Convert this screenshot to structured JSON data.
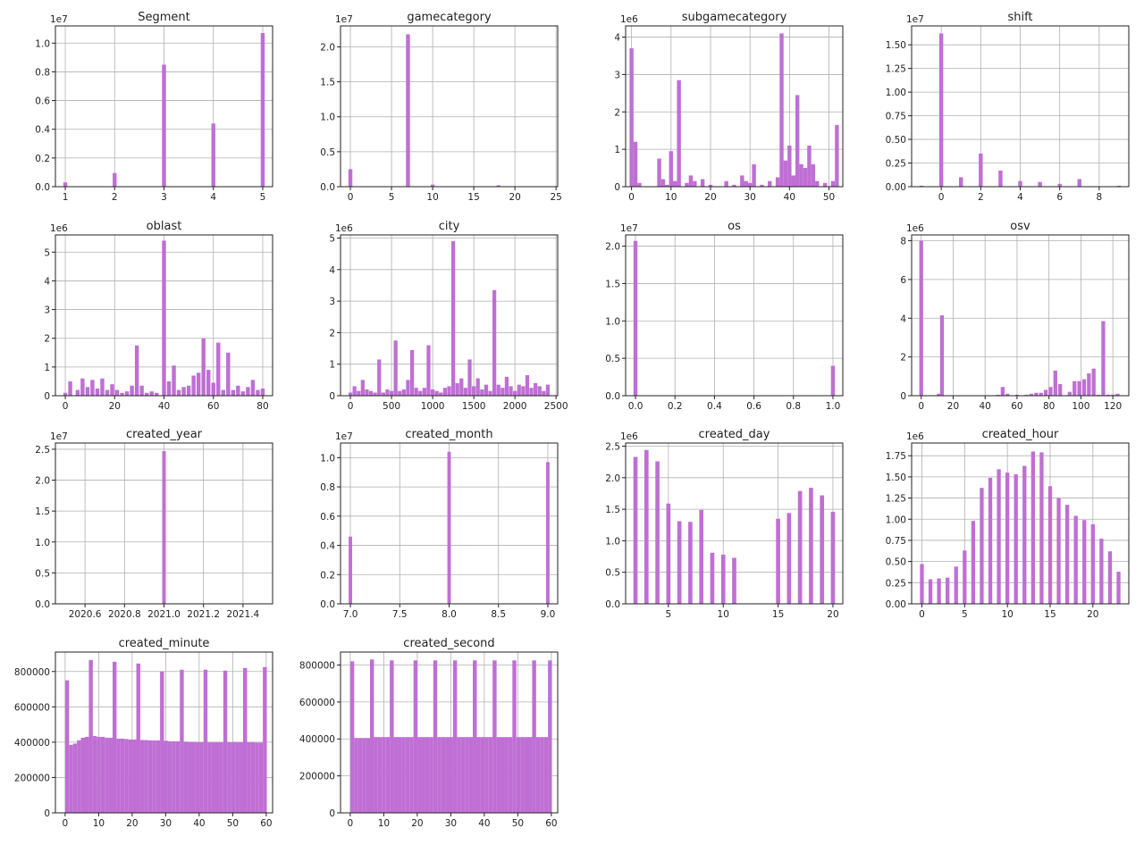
{
  "colors": {
    "bar": "#bf6fd4",
    "grid": "#b0b0b0",
    "axis": "#222222",
    "background": "#ffffff"
  },
  "chart_data": [
    {
      "type": "bar",
      "title": "Segment",
      "multiplier": "1e7",
      "grid": true,
      "xlim": [
        0.8,
        5.2
      ],
      "ylim": [
        0,
        1.12
      ],
      "xticks": [
        1,
        2,
        3,
        4,
        5
      ],
      "xtick_labels": [
        "1",
        "2",
        "3",
        "4",
        "5"
      ],
      "yticks": [
        0,
        0.2,
        0.4,
        0.6,
        0.8,
        1.0
      ],
      "ytick_labels": [
        "0.0",
        "0.2",
        "0.4",
        "0.6",
        "0.8",
        "1.0"
      ],
      "bar_width": 0.08,
      "x": [
        1,
        2,
        3,
        4,
        5
      ],
      "values": [
        0.03,
        0.095,
        0.85,
        0.44,
        1.07
      ]
    },
    {
      "type": "bar",
      "title": "gamecategory",
      "multiplier": "1e7",
      "grid": true,
      "xlim": [
        -1.2,
        25.2
      ],
      "ylim": [
        0,
        2.3
      ],
      "xticks": [
        0,
        5,
        10,
        15,
        20,
        25
      ],
      "xtick_labels": [
        "0",
        "5",
        "10",
        "15",
        "20",
        "25"
      ],
      "yticks": [
        0,
        0.5,
        1.0,
        1.5,
        2.0
      ],
      "ytick_labels": [
        "0.0",
        "0.5",
        "1.0",
        "1.5",
        "2.0"
      ],
      "bar_width": 0.48,
      "x": [
        0,
        7,
        10,
        18
      ],
      "values": [
        0.25,
        2.18,
        0.03,
        0.02
      ]
    },
    {
      "type": "bar",
      "title": "subgamecategory",
      "multiplier": "1e6",
      "grid": true,
      "xlim": [
        -1.5,
        53.5
      ],
      "ylim": [
        0,
        4.3
      ],
      "xticks": [
        0,
        10,
        20,
        30,
        40,
        50
      ],
      "xtick_labels": [
        "0",
        "10",
        "20",
        "30",
        "40",
        "50"
      ],
      "yticks": [
        0,
        1,
        2,
        3,
        4
      ],
      "ytick_labels": [
        "0",
        "1",
        "2",
        "3",
        "4"
      ],
      "bar_width": 1.0,
      "x": [
        0,
        1,
        2,
        7,
        8,
        9,
        10,
        11,
        12,
        14,
        15,
        16,
        18,
        20,
        24,
        26,
        28,
        29,
        30,
        31,
        33,
        35,
        37,
        38,
        39,
        40,
        41,
        42,
        43,
        44,
        45,
        46,
        47,
        49,
        51,
        52
      ],
      "values": [
        3.7,
        1.2,
        0.1,
        0.75,
        0.2,
        0.05,
        0.95,
        0.15,
        2.85,
        0.1,
        0.3,
        0.15,
        0.2,
        0.05,
        0.15,
        0.05,
        0.3,
        0.15,
        0.1,
        0.6,
        0.05,
        0.15,
        0.25,
        4.1,
        0.7,
        1.1,
        0.3,
        2.45,
        0.6,
        0.5,
        1.1,
        0.6,
        0.15,
        0.1,
        0.15,
        1.65
      ]
    },
    {
      "type": "bar",
      "title": "shift",
      "multiplier": "1e7",
      "grid": true,
      "xlim": [
        -1.5,
        9.5
      ],
      "ylim": [
        0,
        1.7
      ],
      "xticks": [
        0,
        2,
        4,
        6,
        8
      ],
      "xtick_labels": [
        "0",
        "2",
        "4",
        "6",
        "8"
      ],
      "yticks": [
        0,
        0.25,
        0.5,
        0.75,
        1.0,
        1.25,
        1.5
      ],
      "ytick_labels": [
        "0.00",
        "0.25",
        "0.50",
        "0.75",
        "1.00",
        "1.25",
        "1.50"
      ],
      "bar_width": 0.2,
      "x": [
        -1,
        0,
        1,
        2,
        3,
        4,
        5,
        6,
        7,
        9
      ],
      "values": [
        0.01,
        1.62,
        0.1,
        0.35,
        0.17,
        0.06,
        0.05,
        0.03,
        0.08,
        0.01
      ]
    },
    {
      "type": "bar",
      "title": "oblast",
      "multiplier": "1e6",
      "grid": true,
      "xlim": [
        -4,
        84
      ],
      "ylim": [
        0,
        5.6
      ],
      "xticks": [
        0,
        20,
        40,
        60,
        80
      ],
      "xtick_labels": [
        "0",
        "20",
        "40",
        "60",
        "80"
      ],
      "yticks": [
        0,
        1,
        2,
        3,
        4,
        5
      ],
      "ytick_labels": [
        "0",
        "1",
        "2",
        "3",
        "4",
        "5"
      ],
      "bar_width": 1.6,
      "x": [
        0,
        2,
        5,
        7,
        9,
        11,
        13,
        15,
        17,
        19,
        21,
        23,
        25,
        27,
        29,
        31,
        33,
        35,
        37,
        40,
        42,
        44,
        46,
        48,
        50,
        52,
        54,
        56,
        58,
        60,
        62,
        64,
        66,
        68,
        70,
        72,
        74,
        76,
        78,
        80
      ],
      "values": [
        0.1,
        0.5,
        0.2,
        0.6,
        0.3,
        0.55,
        0.25,
        0.6,
        0.2,
        0.4,
        0.2,
        0.1,
        0.15,
        0.35,
        1.75,
        0.35,
        0.1,
        0.15,
        0.1,
        5.4,
        0.5,
        1.05,
        0.2,
        0.3,
        0.35,
        0.7,
        0.8,
        2.0,
        0.9,
        0.45,
        1.85,
        0.2,
        1.5,
        0.2,
        0.35,
        0.15,
        0.3,
        0.55,
        0.2,
        0.25
      ]
    },
    {
      "type": "bar",
      "title": "city",
      "multiplier": "1e6",
      "grid": true,
      "xlim": [
        -120,
        2520
      ],
      "ylim": [
        0,
        5.1
      ],
      "xticks": [
        0,
        500,
        1000,
        1500,
        2000,
        2500
      ],
      "xtick_labels": [
        "0",
        "500",
        "1000",
        "1500",
        "2000",
        "2500"
      ],
      "yticks": [
        0,
        1,
        2,
        3,
        4,
        5
      ],
      "ytick_labels": [
        "0",
        "1",
        "2",
        "3",
        "4",
        "5"
      ],
      "bar_width": 46,
      "x": [
        0,
        50,
        100,
        150,
        200,
        250,
        300,
        350,
        400,
        450,
        500,
        550,
        600,
        650,
        700,
        750,
        800,
        850,
        900,
        950,
        1000,
        1050,
        1100,
        1150,
        1200,
        1250,
        1300,
        1350,
        1400,
        1450,
        1500,
        1550,
        1600,
        1650,
        1700,
        1750,
        1800,
        1850,
        1900,
        1950,
        2000,
        2050,
        2100,
        2150,
        2200,
        2250,
        2300,
        2350,
        2400
      ],
      "values": [
        0.1,
        0.3,
        0.15,
        0.5,
        0.2,
        0.15,
        0.1,
        1.15,
        0.1,
        0.2,
        0.15,
        1.75,
        0.15,
        0.2,
        0.5,
        1.45,
        0.25,
        0.15,
        0.25,
        1.6,
        0.2,
        0.15,
        0.1,
        0.25,
        0.3,
        4.9,
        0.4,
        0.55,
        0.25,
        1.15,
        0.3,
        0.55,
        0.2,
        0.35,
        0.15,
        3.35,
        0.35,
        0.25,
        0.6,
        0.3,
        0.15,
        0.35,
        0.3,
        0.65,
        0.25,
        0.4,
        0.3,
        0.15,
        0.35
      ]
    },
    {
      "type": "bar",
      "title": "os",
      "multiplier": "1e7",
      "grid": true,
      "xlim": [
        -0.05,
        1.05
      ],
      "ylim": [
        0,
        2.15
      ],
      "xticks": [
        0,
        0.2,
        0.4,
        0.6,
        0.8,
        1.0
      ],
      "xtick_labels": [
        "0.0",
        "0.2",
        "0.4",
        "0.6",
        "0.8",
        "1.0"
      ],
      "yticks": [
        0,
        0.5,
        1.0,
        1.5,
        2.0
      ],
      "ytick_labels": [
        "0.0",
        "0.5",
        "1.0",
        "1.5",
        "2.0"
      ],
      "bar_width": 0.02,
      "x": [
        0,
        1
      ],
      "values": [
        2.07,
        0.4
      ]
    },
    {
      "type": "bar",
      "title": "osv",
      "multiplier": "1e6",
      "grid": true,
      "xlim": [
        -6,
        130
      ],
      "ylim": [
        0,
        8.3
      ],
      "xticks": [
        0,
        20,
        40,
        60,
        80,
        100,
        120
      ],
      "xtick_labels": [
        "0",
        "20",
        "40",
        "60",
        "80",
        "100",
        "120"
      ],
      "yticks": [
        0,
        2,
        4,
        6,
        8
      ],
      "ytick_labels": [
        "0",
        "2",
        "4",
        "6",
        "8"
      ],
      "bar_width": 2.4,
      "x": [
        0,
        11,
        13,
        48,
        51,
        54,
        60,
        66,
        69,
        72,
        75,
        78,
        81,
        84,
        87,
        93,
        96,
        99,
        102,
        105,
        108,
        111,
        114,
        117,
        120,
        123
      ],
      "values": [
        8.0,
        0.1,
        4.15,
        0.05,
        0.45,
        0.1,
        0.05,
        0.05,
        0.1,
        0.15,
        0.15,
        0.3,
        0.45,
        1.3,
        0.6,
        0.2,
        0.75,
        0.75,
        0.85,
        1.15,
        1.4,
        0.05,
        3.85,
        0.05,
        0.05,
        0.1
      ]
    },
    {
      "type": "bar",
      "title": "created_year",
      "multiplier": "1e7",
      "grid": true,
      "xlim": [
        2020.45,
        2021.55
      ],
      "ylim": [
        0,
        2.6
      ],
      "xticks": [
        2020.6,
        2020.8,
        2021.0,
        2021.2,
        2021.4
      ],
      "xtick_labels": [
        "2020.6",
        "2020.8",
        "2021.0",
        "2021.2",
        "2021.4"
      ],
      "yticks": [
        0,
        0.5,
        1.0,
        1.5,
        2.0,
        2.5
      ],
      "ytick_labels": [
        "0.0",
        "0.5",
        "1.0",
        "1.5",
        "2.0",
        "2.5"
      ],
      "bar_width": 0.018,
      "x": [
        2021.0
      ],
      "values": [
        2.47
      ]
    },
    {
      "type": "bar",
      "title": "created_month",
      "multiplier": "1e7",
      "grid": true,
      "xlim": [
        6.9,
        9.1
      ],
      "ylim": [
        0,
        1.1
      ],
      "xticks": [
        7.0,
        7.5,
        8.0,
        8.5,
        9.0
      ],
      "xtick_labels": [
        "7.0",
        "7.5",
        "8.0",
        "8.5",
        "9.0"
      ],
      "yticks": [
        0,
        0.2,
        0.4,
        0.6,
        0.8,
        1.0
      ],
      "ytick_labels": [
        "0.0",
        "0.2",
        "0.4",
        "0.6",
        "0.8",
        "1.0"
      ],
      "bar_width": 0.035,
      "x": [
        7,
        8,
        9
      ],
      "values": [
        0.46,
        1.04,
        0.97
      ]
    },
    {
      "type": "bar",
      "title": "created_day",
      "multiplier": "1e6",
      "grid": true,
      "xlim": [
        1.1,
        20.9
      ],
      "ylim": [
        0,
        2.55
      ],
      "xticks": [
        5,
        10,
        15,
        20
      ],
      "xtick_labels": [
        "5",
        "10",
        "15",
        "20"
      ],
      "yticks": [
        0,
        0.5,
        1.0,
        1.5,
        2.0,
        2.5
      ],
      "ytick_labels": [
        "0.0",
        "0.5",
        "1.0",
        "1.5",
        "2.0",
        "2.5"
      ],
      "bar_width": 0.38,
      "x": [
        2,
        3,
        4,
        5,
        6,
        7,
        8,
        9,
        10,
        11,
        15,
        16,
        17,
        18,
        19,
        20
      ],
      "values": [
        2.33,
        2.44,
        2.26,
        1.59,
        1.31,
        1.3,
        1.49,
        0.81,
        0.78,
        0.73,
        1.35,
        1.44,
        1.79,
        1.84,
        1.72,
        1.46
      ]
    },
    {
      "type": "bar",
      "title": "created_hour",
      "multiplier": "1e6",
      "grid": true,
      "xlim": [
        -1.2,
        24.2
      ],
      "ylim": [
        0,
        1.9
      ],
      "xticks": [
        0,
        5,
        10,
        15,
        20
      ],
      "xtick_labels": [
        "0",
        "5",
        "10",
        "15",
        "20"
      ],
      "yticks": [
        0,
        0.25,
        0.5,
        0.75,
        1.0,
        1.25,
        1.5,
        1.75
      ],
      "ytick_labels": [
        "0.00",
        "0.25",
        "0.50",
        "0.75",
        "1.00",
        "1.25",
        "1.50",
        "1.75"
      ],
      "bar_width": 0.45,
      "x": [
        0,
        1,
        2,
        3,
        4,
        5,
        6,
        7,
        8,
        9,
        10,
        11,
        12,
        13,
        14,
        15,
        16,
        17,
        18,
        19,
        20,
        21,
        22,
        23
      ],
      "values": [
        0.47,
        0.29,
        0.3,
        0.31,
        0.44,
        0.63,
        0.98,
        1.37,
        1.49,
        1.59,
        1.55,
        1.53,
        1.63,
        1.8,
        1.79,
        1.39,
        1.25,
        1.17,
        1.04,
        0.99,
        0.94,
        0.77,
        0.62,
        0.38
      ]
    },
    {
      "type": "bar",
      "title": "created_minute",
      "multiplier": "",
      "grid": true,
      "xlim": [
        -2.9,
        61.9
      ],
      "ylim": [
        0,
        910000
      ],
      "xticks": [
        0,
        10,
        20,
        30,
        40,
        50,
        60
      ],
      "xtick_labels": [
        "0",
        "10",
        "20",
        "30",
        "40",
        "50",
        "60"
      ],
      "yticks": [
        0,
        200000,
        400000,
        600000,
        800000
      ],
      "ytick_labels": [
        "0",
        "200000",
        "400000",
        "600000",
        "800000"
      ],
      "bar_width": 1.18,
      "x_start": 0,
      "x_step": 1.18,
      "values": [
        750000,
        385000,
        392000,
        410000,
        425000,
        430000,
        865000,
        435000,
        430000,
        430000,
        425000,
        425000,
        855000,
        420000,
        420000,
        418000,
        415000,
        415000,
        845000,
        412000,
        412000,
        410000,
        410000,
        410000,
        800000,
        408000,
        405000,
        405000,
        405000,
        810000,
        403000,
        402000,
        402000,
        400000,
        400000,
        810000,
        400000,
        400000,
        400000,
        400000,
        805000,
        400000,
        400000,
        400000,
        400000,
        820000,
        400000,
        400000,
        398000,
        398000,
        825000
      ]
    },
    {
      "type": "bar",
      "title": "created_second",
      "multiplier": "",
      "grid": true,
      "xlim": [
        -2.9,
        61.9
      ],
      "ylim": [
        0,
        870000
      ],
      "xticks": [
        0,
        10,
        20,
        30,
        40,
        50,
        60
      ],
      "xtick_labels": [
        "0",
        "10",
        "20",
        "30",
        "40",
        "50",
        "60"
      ],
      "yticks": [
        0,
        200000,
        400000,
        600000,
        800000
      ],
      "ytick_labels": [
        "0",
        "200000",
        "400000",
        "600000",
        "800000"
      ],
      "bar_width": 1.18,
      "x_start": 0,
      "x_step": 1.18,
      "values": [
        820000,
        405000,
        405000,
        405000,
        405000,
        830000,
        410000,
        410000,
        410000,
        410000,
        825000,
        410000,
        410000,
        410000,
        410000,
        410000,
        825000,
        410000,
        410000,
        410000,
        410000,
        825000,
        410000,
        410000,
        410000,
        410000,
        825000,
        410000,
        410000,
        410000,
        410000,
        825000,
        410000,
        410000,
        410000,
        410000,
        825000,
        410000,
        410000,
        410000,
        410000,
        825000,
        410000,
        410000,
        410000,
        410000,
        825000,
        410000,
        410000,
        410000,
        825000
      ]
    }
  ]
}
